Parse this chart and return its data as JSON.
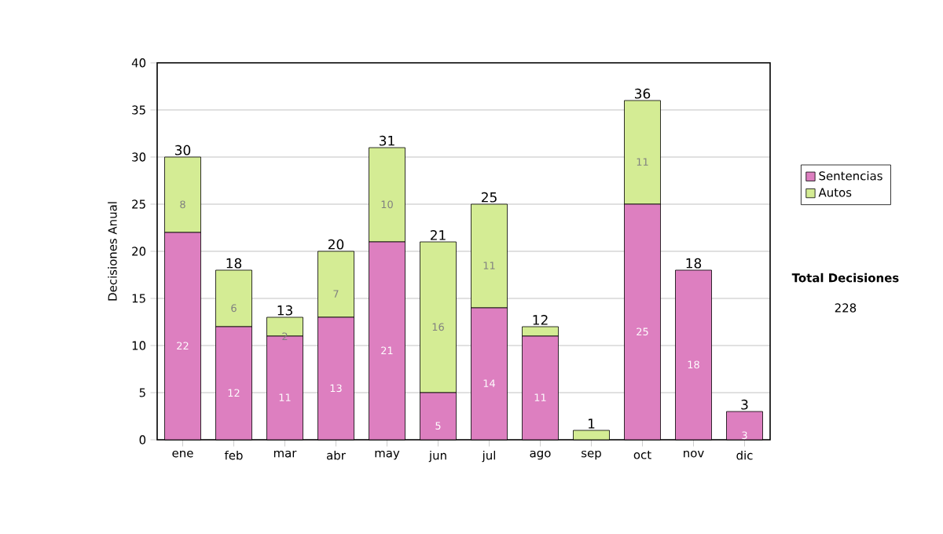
{
  "chart_data": {
    "type": "bar",
    "stacked": true,
    "ylabel": "Decisiones Anual",
    "categories": [
      "ene",
      "feb",
      "mar",
      "abr",
      "may",
      "jun",
      "jul",
      "ago",
      "sep",
      "oct",
      "nov",
      "dic"
    ],
    "series": [
      {
        "name": "Sentencias",
        "color": "#dd7fc0",
        "values": [
          22,
          12,
          11,
          13,
          21,
          5,
          14,
          11,
          0,
          25,
          18,
          3
        ],
        "value_labels": [
          "22",
          "12",
          "11",
          "13",
          "21",
          "5",
          "14",
          "11",
          null,
          "25",
          "18",
          "3"
        ]
      },
      {
        "name": "Autos",
        "color": "#d4ec94",
        "values": [
          8,
          6,
          2,
          7,
          10,
          16,
          11,
          1,
          1,
          11,
          0,
          0
        ],
        "value_labels": [
          "8",
          "6",
          "2",
          "7",
          "10",
          "16",
          "11",
          null,
          null,
          "11",
          null,
          null
        ]
      }
    ],
    "totals": [
      "30",
      "18",
      "13",
      "20",
      "31",
      "21",
      "25",
      "12",
      "1",
      "36",
      "18",
      "3"
    ],
    "ylim": [
      0,
      40
    ],
    "yticks": [
      0,
      5,
      10,
      15,
      20,
      25,
      30,
      35,
      40
    ],
    "grid": "y",
    "legend": "right",
    "annotations": [
      "Total Decisiones",
      "228"
    ]
  }
}
